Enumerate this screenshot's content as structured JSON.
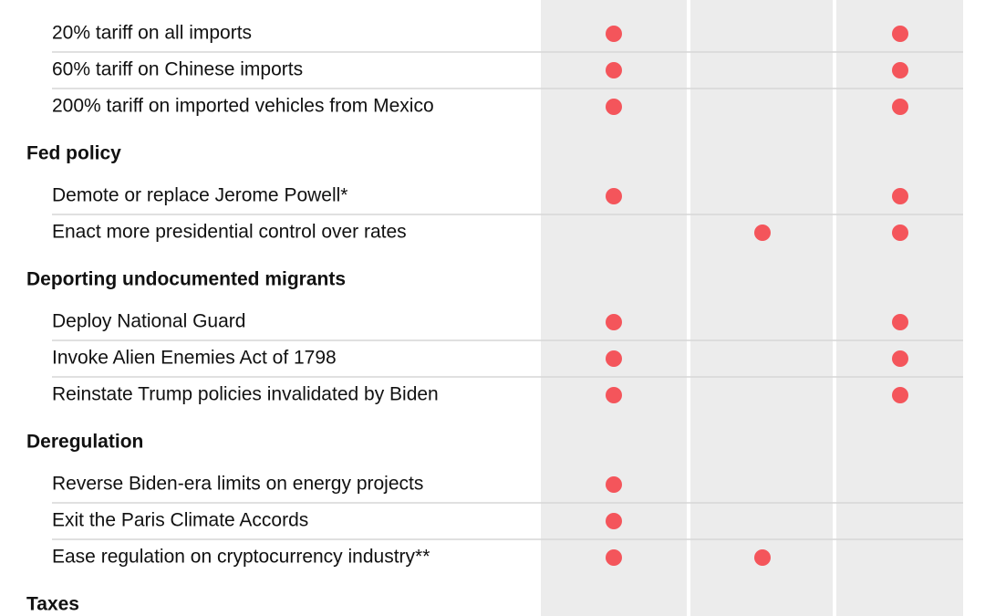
{
  "sections": [
    {
      "rows": [
        {
          "label": "20% tariff on all imports",
          "marks": [
            true,
            false,
            true
          ]
        },
        {
          "label": "60% tariff on Chinese imports",
          "marks": [
            true,
            false,
            true
          ]
        },
        {
          "label": "200% tariff on imported vehicles from Mexico",
          "marks": [
            true,
            false,
            true
          ]
        }
      ]
    },
    {
      "title": "Fed policy",
      "rows": [
        {
          "label": "Demote or replace Jerome Powell*",
          "marks": [
            true,
            false,
            true
          ]
        },
        {
          "label": "Enact more presidential control over rates",
          "marks": [
            false,
            true,
            true
          ]
        }
      ]
    },
    {
      "title": "Deporting undocumented migrants",
      "rows": [
        {
          "label": "Deploy National Guard",
          "marks": [
            true,
            false,
            true
          ]
        },
        {
          "label": "Invoke Alien Enemies Act of 1798",
          "marks": [
            true,
            false,
            true
          ]
        },
        {
          "label": "Reinstate Trump policies invalidated by Biden",
          "marks": [
            true,
            false,
            true
          ]
        }
      ]
    },
    {
      "title": "Deregulation",
      "rows": [
        {
          "label": "Reverse Biden-era limits on energy projects",
          "marks": [
            true,
            false,
            false
          ]
        },
        {
          "label": "Exit the Paris Climate Accords",
          "marks": [
            true,
            false,
            false
          ]
        },
        {
          "label": "Ease regulation on cryptocurrency industry**",
          "marks": [
            true,
            true,
            false
          ]
        }
      ]
    },
    {
      "title": "Taxes",
      "rows": []
    }
  ]
}
